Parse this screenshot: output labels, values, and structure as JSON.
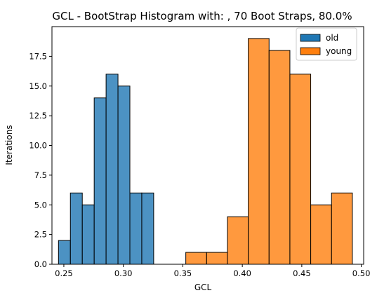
{
  "chart_data": {
    "type": "bar",
    "subtype": "histogram",
    "title": "GCL - BootStrap Histogram with: , 70 Boot Straps, 80.0%",
    "xlabel": "GCL",
    "ylabel": "Iterations",
    "xlim": [
      0.24,
      0.502
    ],
    "ylim": [
      0,
      20
    ],
    "x_ticks": [
      0.25,
      0.3,
      0.35,
      0.4,
      0.45,
      0.5
    ],
    "x_tick_labels": [
      "0.25",
      "0.30",
      "0.35",
      "0.40",
      "0.45",
      "0.50"
    ],
    "y_ticks": [
      0,
      2.5,
      5,
      7.5,
      10,
      12.5,
      15,
      17.5
    ],
    "y_tick_labels": [
      "0.0",
      "2.5",
      "5.0",
      "7.5",
      "10.0",
      "12.5",
      "15.0",
      "17.5"
    ],
    "grid": false,
    "legend_position": "top-right",
    "series": [
      {
        "name": "old",
        "color": "#1f77b4",
        "bins": [
          {
            "x0": 0.2455,
            "x1": 0.2555,
            "count": 2
          },
          {
            "x0": 0.2555,
            "x1": 0.2655,
            "count": 6
          },
          {
            "x0": 0.2655,
            "x1": 0.2755,
            "count": 5
          },
          {
            "x0": 0.2755,
            "x1": 0.2855,
            "count": 14
          },
          {
            "x0": 0.2855,
            "x1": 0.2955,
            "count": 16
          },
          {
            "x0": 0.2955,
            "x1": 0.3055,
            "count": 15
          },
          {
            "x0": 0.3055,
            "x1": 0.3155,
            "count": 6
          },
          {
            "x0": 0.3155,
            "x1": 0.3255,
            "count": 6
          }
        ]
      },
      {
        "name": "young",
        "color": "#ff7f0e",
        "bins": [
          {
            "x0": 0.3525,
            "x1": 0.37,
            "count": 1
          },
          {
            "x0": 0.37,
            "x1": 0.3875,
            "count": 1
          },
          {
            "x0": 0.3875,
            "x1": 0.405,
            "count": 4
          },
          {
            "x0": 0.405,
            "x1": 0.4225,
            "count": 19
          },
          {
            "x0": 0.4225,
            "x1": 0.44,
            "count": 18
          },
          {
            "x0": 0.44,
            "x1": 0.4575,
            "count": 16
          },
          {
            "x0": 0.4575,
            "x1": 0.475,
            "count": 5
          },
          {
            "x0": 0.475,
            "x1": 0.4925,
            "count": 6
          }
        ]
      }
    ]
  }
}
